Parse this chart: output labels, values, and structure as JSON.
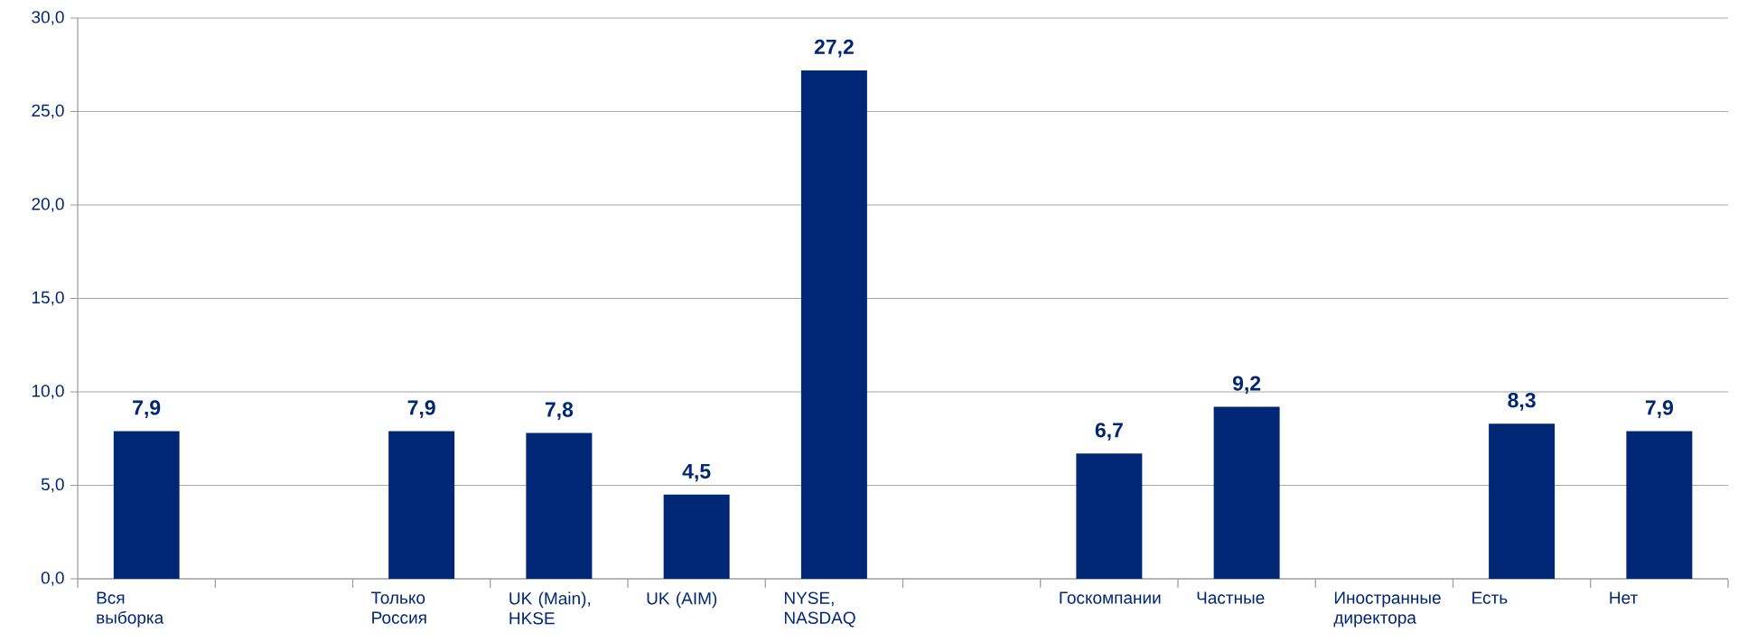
{
  "chart_data": {
    "type": "bar",
    "categories": [
      "Вся выборка",
      null,
      "Только Россия",
      "UK (Main), HKSE",
      "UK (AIM)",
      "NYSE, NASDAQ",
      null,
      "Госкомпании",
      "Частные",
      "Иностранные директора",
      "Есть",
      "Нет"
    ],
    "values": [
      7.9,
      null,
      7.9,
      7.8,
      4.5,
      27.2,
      null,
      6.7,
      9.2,
      null,
      8.3,
      7.9
    ],
    "value_labels": [
      "7,9",
      null,
      "7,9",
      "7,8",
      "4,5",
      "27,2",
      null,
      "6,7",
      "9,2",
      null,
      "8,3",
      "7,9"
    ],
    "color": "#002776",
    "ylim": [
      0,
      30
    ],
    "yticks": [
      {
        "value": 0,
        "label": "0,0"
      },
      {
        "value": 5,
        "label": "5,0"
      },
      {
        "value": 10,
        "label": "10,0"
      },
      {
        "value": 15,
        "label": "15,0"
      },
      {
        "value": 20,
        "label": "20,0"
      },
      {
        "value": 25,
        "label": "25,0"
      },
      {
        "value": 30,
        "label": "30,0"
      }
    ],
    "grid": "y"
  }
}
